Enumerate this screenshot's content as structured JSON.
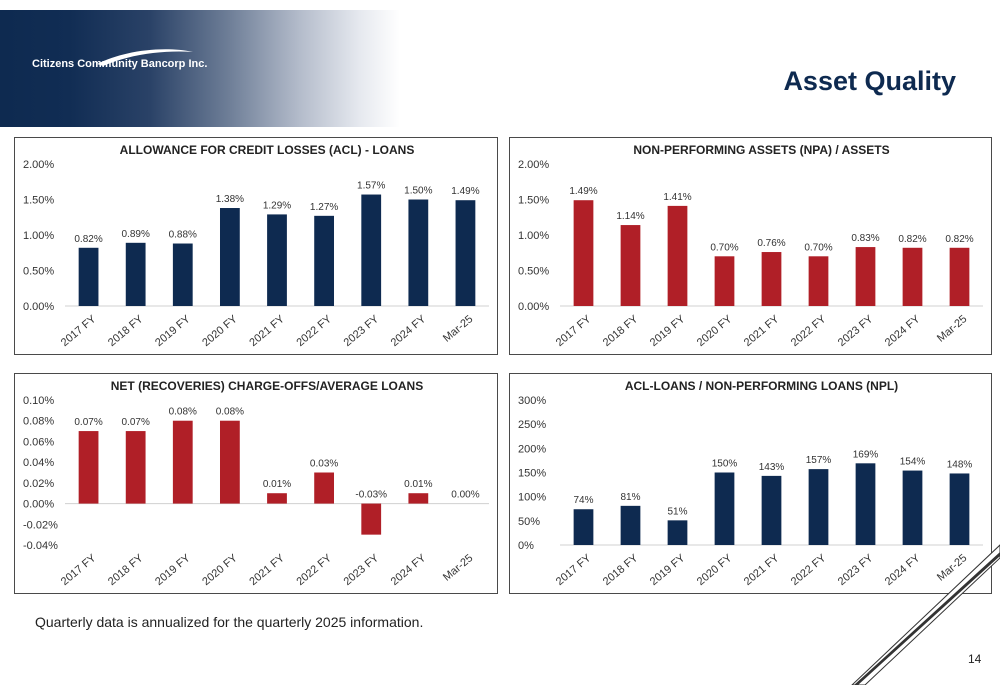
{
  "header": {
    "logo_text": "Citizens Community Bancorp Inc.",
    "title": "Asset Quality",
    "brand_color": "#0e2a50"
  },
  "footnote": "Quarterly data is annualized for the quarterly 2025 information.",
  "page_number": "14",
  "chart_data": [
    {
      "id": "acl-loans",
      "type": "bar",
      "title": "ALLOWANCE FOR CREDIT LOSSES (ACL) - LOANS",
      "categories": [
        "2017 FY",
        "2018 FY",
        "2019 FY",
        "2020 FY",
        "2021 FY",
        "2022 FY",
        "2023 FY",
        "2024 FY",
        "Mar-25"
      ],
      "values": [
        0.82,
        0.89,
        0.88,
        1.38,
        1.29,
        1.27,
        1.57,
        1.5,
        1.49
      ],
      "labels": [
        "0.82%",
        "0.89%",
        "0.88%",
        "1.38%",
        "1.29%",
        "1.27%",
        "1.57%",
        "1.50%",
        "1.49%"
      ],
      "yticks": [
        "2.00%",
        "1.50%",
        "1.00%",
        "0.50%",
        "0.00%"
      ],
      "ytick_values": [
        2.0,
        1.5,
        1.0,
        0.5,
        0.0
      ],
      "ylim": [
        0,
        2.0
      ],
      "color": "#0e2a50",
      "grid": false,
      "xlabel": "",
      "ylabel": ""
    },
    {
      "id": "npa-assets",
      "type": "bar",
      "title": "NON-PERFORMING ASSETS (NPA)  / ASSETS",
      "categories": [
        "2017 FY",
        "2018 FY",
        "2019 FY",
        "2020 FY",
        "2021 FY",
        "2022 FY",
        "2023 FY",
        "2024 FY",
        "Mar-25"
      ],
      "values": [
        1.49,
        1.14,
        1.41,
        0.7,
        0.76,
        0.7,
        0.83,
        0.82,
        0.82
      ],
      "labels": [
        "1.49%",
        "1.14%",
        "1.41%",
        "0.70%",
        "0.76%",
        "0.70%",
        "0.83%",
        "0.82%",
        "0.82%"
      ],
      "yticks": [
        "2.00%",
        "1.50%",
        "1.00%",
        "0.50%",
        "0.00%"
      ],
      "ytick_values": [
        2.0,
        1.5,
        1.0,
        0.5,
        0.0
      ],
      "ylim": [
        0,
        2.0
      ],
      "color": "#b01f27",
      "grid": false,
      "xlabel": "",
      "ylabel": ""
    },
    {
      "id": "net-chargeoffs",
      "type": "bar",
      "title": "NET (RECOVERIES) CHARGE-OFFS/AVERAGE LOANS",
      "categories": [
        "2017 FY",
        "2018 FY",
        "2019 FY",
        "2020 FY",
        "2021 FY",
        "2022 FY",
        "2023 FY",
        "2024 FY",
        "Mar-25"
      ],
      "values": [
        0.07,
        0.07,
        0.08,
        0.08,
        0.01,
        0.03,
        -0.03,
        0.01,
        0.0
      ],
      "labels": [
        "0.07%",
        "0.07%",
        "0.08%",
        "0.08%",
        "0.01%",
        "0.03%",
        "-0.03%",
        "0.01%",
        "0.00%"
      ],
      "yticks": [
        "0.10%",
        "0.08%",
        "0.06%",
        "0.04%",
        "0.02%",
        "0.00%",
        "-0.02%",
        "-0.04%"
      ],
      "ytick_values": [
        0.1,
        0.08,
        0.06,
        0.04,
        0.02,
        0.0,
        -0.02,
        -0.04
      ],
      "ylim": [
        -0.04,
        0.1
      ],
      "color": "#b01f27",
      "grid": false,
      "xlabel": "",
      "ylabel": ""
    },
    {
      "id": "acl-npl",
      "type": "bar",
      "title": "ACL-LOANS / NON-PERFORMING LOANS (NPL)",
      "categories": [
        "2017 FY",
        "2018 FY",
        "2019 FY",
        "2020 FY",
        "2021 FY",
        "2022 FY",
        "2023 FY",
        "2024 FY",
        "Mar-25"
      ],
      "values": [
        74,
        81,
        51,
        150,
        143,
        157,
        169,
        154,
        148
      ],
      "labels": [
        "74%",
        "81%",
        "51%",
        "150%",
        "143%",
        "157%",
        "169%",
        "154%",
        "148%"
      ],
      "yticks": [
        "300%",
        "250%",
        "200%",
        "150%",
        "100%",
        "50%",
        "0%"
      ],
      "ytick_values": [
        300,
        250,
        200,
        150,
        100,
        50,
        0
      ],
      "ylim": [
        0,
        300
      ],
      "color": "#0e2a50",
      "grid": false,
      "xlabel": "",
      "ylabel": ""
    }
  ]
}
